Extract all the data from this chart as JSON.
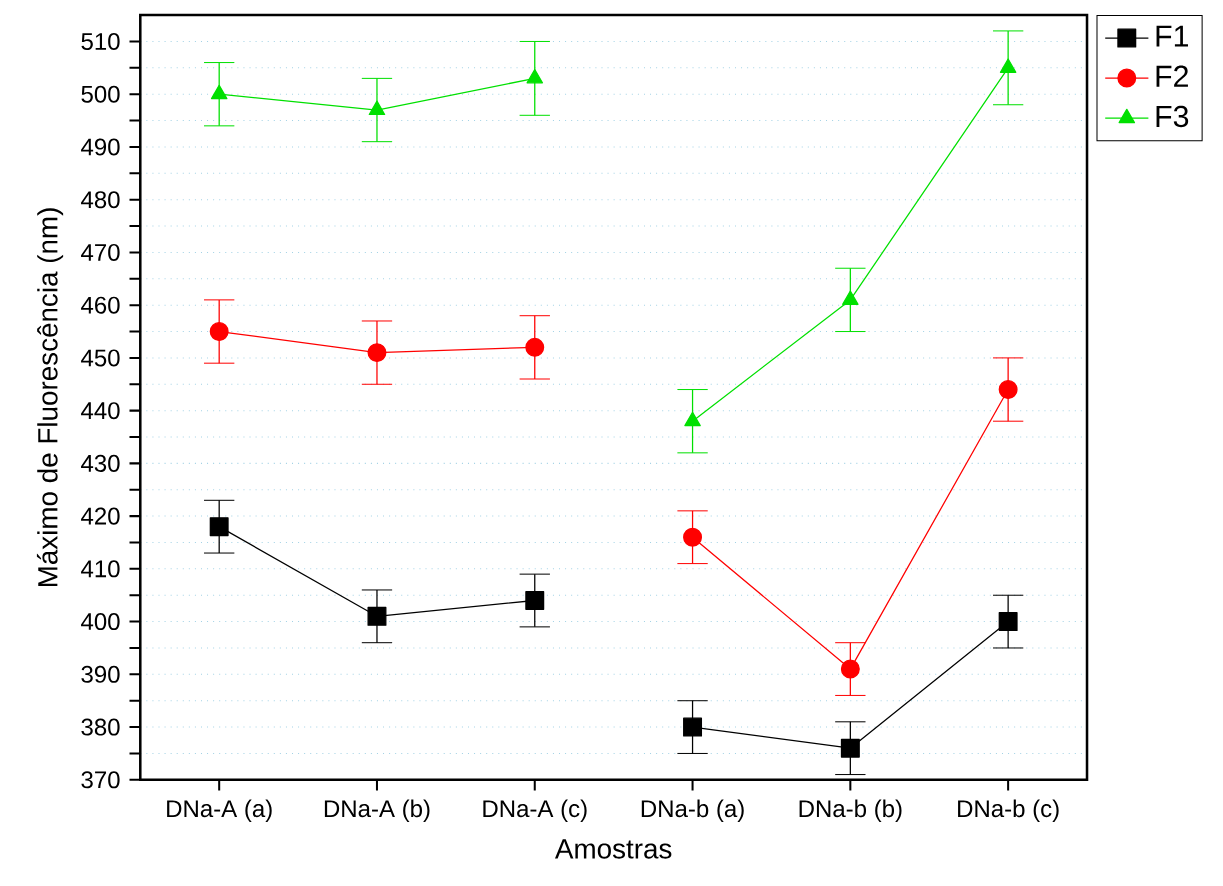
{
  "chart_data": {
    "type": "line",
    "xlabel": "Amostras",
    "ylabel": "Máximo de Fluorescência (nm)",
    "categories": [
      "DNa-A (a)",
      "DNa-A (b)",
      "DNa-A (c)",
      "DNa-b (a)",
      "DNa-b (b)",
      "DNa-b (c)"
    ],
    "series": [
      {
        "name": "F1",
        "color": "#000000",
        "marker": "square",
        "values": [
          418,
          401,
          404,
          null,
          null,
          null
        ],
        "errors": [
          5,
          5,
          5,
          null,
          null,
          null
        ]
      },
      {
        "name": "F2",
        "color": "#ff0000",
        "marker": "circle",
        "values": [
          455,
          451,
          452,
          null,
          null,
          null
        ],
        "errors": [
          6,
          6,
          6,
          null,
          null,
          null
        ]
      },
      {
        "name": "F3",
        "color": "#00e000",
        "marker": "triangle",
        "values": [
          500,
          497,
          503,
          null,
          null,
          null
        ],
        "errors": [
          6,
          6,
          7,
          null,
          null,
          null
        ]
      },
      {
        "color": "#000000",
        "marker": "square",
        "values": [
          null,
          null,
          null,
          380,
          376,
          400
        ],
        "errors": [
          null,
          null,
          null,
          5,
          5,
          5
        ]
      },
      {
        "color": "#ff0000",
        "marker": "circle",
        "values": [
          null,
          null,
          null,
          416,
          391,
          444
        ],
        "errors": [
          null,
          null,
          null,
          5,
          5,
          6
        ]
      },
      {
        "color": "#00e000",
        "marker": "triangle",
        "values": [
          null,
          null,
          null,
          438,
          461,
          505
        ],
        "errors": [
          null,
          null,
          null,
          6,
          6,
          7
        ]
      }
    ],
    "ylim": [
      370,
      515
    ],
    "yticks": [
      370,
      {
        "value": 375,
        "label": null
      },
      380,
      {
        "value": 385,
        "label": null
      },
      390,
      {
        "value": 395,
        "label": null
      },
      400,
      {
        "value": 405,
        "label": null
      },
      410,
      {
        "value": 415,
        "label": null
      },
      420,
      {
        "value": 425,
        "label": null
      },
      430,
      {
        "value": 435,
        "label": null
      },
      440,
      {
        "value": 445,
        "label": null
      },
      450,
      {
        "value": 455,
        "label": null
      },
      460,
      {
        "value": 465,
        "label": null
      },
      470,
      {
        "value": 475,
        "label": null
      },
      480,
      {
        "value": 485,
        "label": null
      },
      490,
      {
        "value": 495,
        "label": null
      },
      500,
      {
        "value": 505,
        "label": null
      },
      510
    ],
    "grid": "y",
    "legend": "top right",
    "line_style": "solid"
  }
}
